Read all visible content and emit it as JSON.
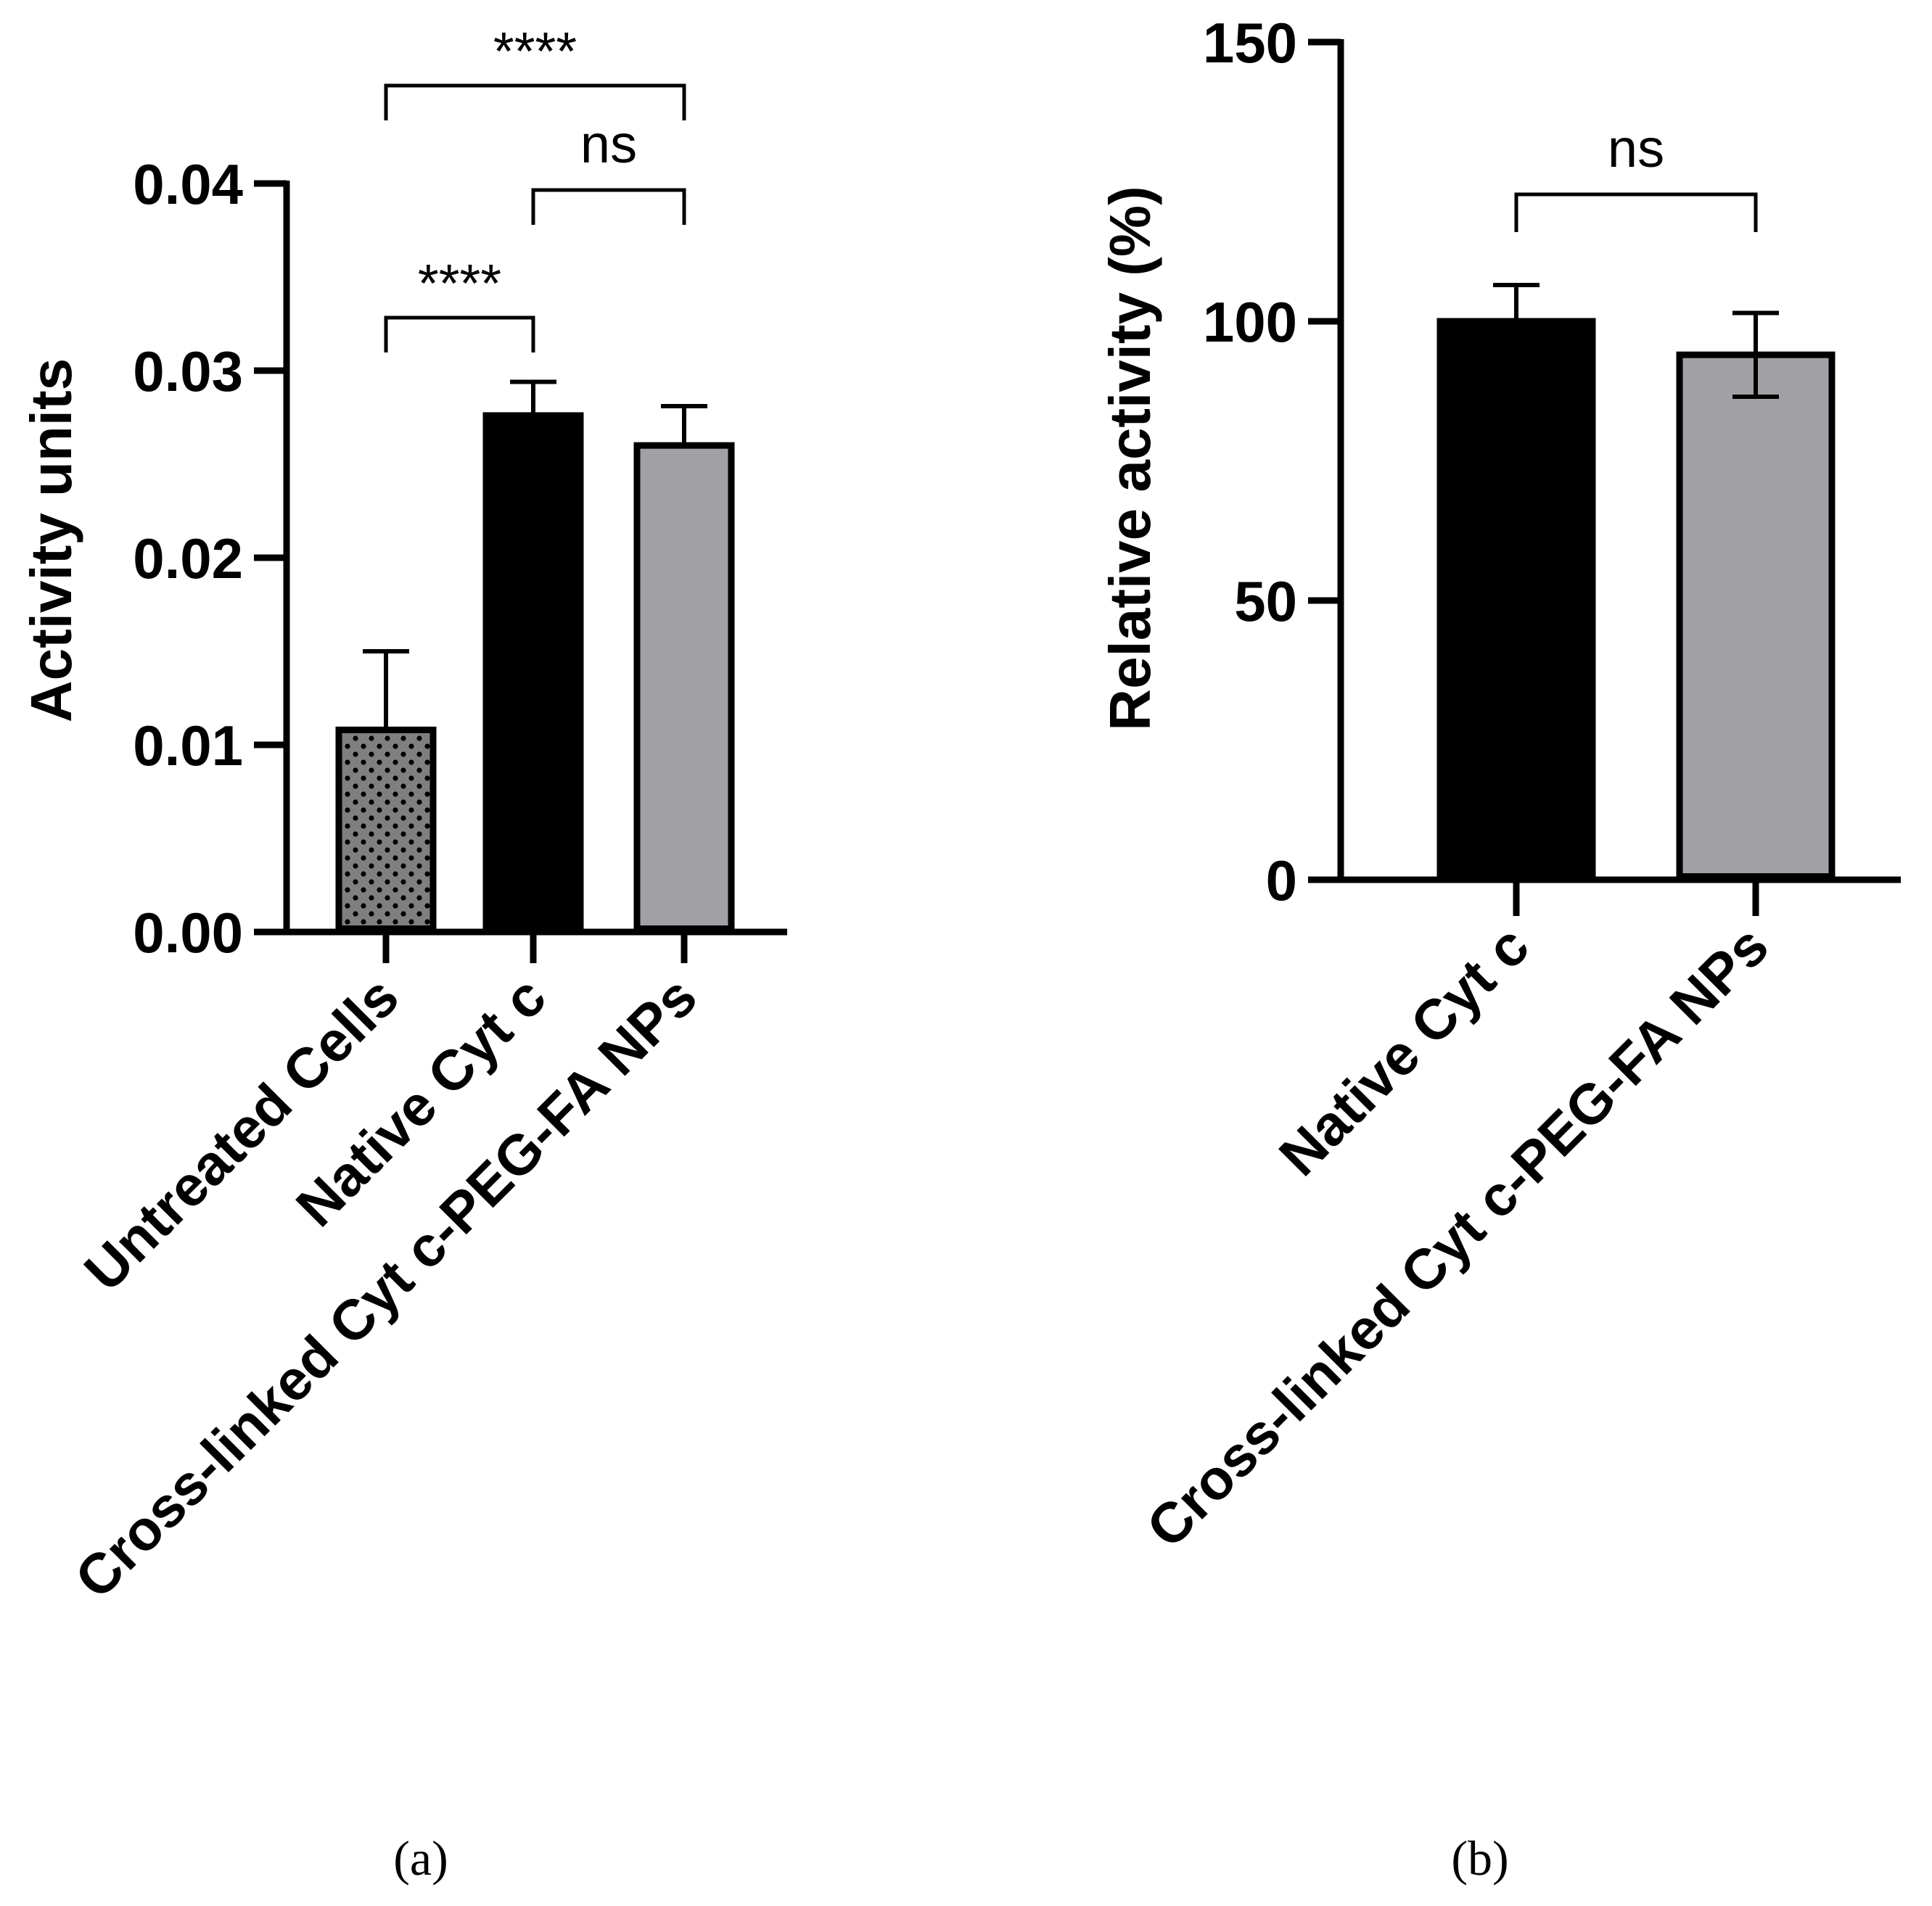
{
  "chart_data": [
    {
      "type": "bar",
      "panel_label": "(a)",
      "ylabel": "Activity units",
      "ylim": [
        0,
        0.04
      ],
      "yticks": [
        "0.00",
        "0.01",
        "0.02",
        "0.03",
        "0.04"
      ],
      "ytick_values": [
        0,
        0.01,
        0.02,
        0.03,
        0.04
      ],
      "categories": [
        "Untreated Cells",
        "Native Cyt c",
        "Cross-linked Cyt c-PEG-FA NPs"
      ],
      "values": [
        0.0108,
        0.0276,
        0.026
      ],
      "errors": [
        0.0042,
        0.0018,
        0.0021
      ],
      "fills": [
        "dotted-gray",
        "black",
        "gray"
      ],
      "significance": [
        {
          "from": 0,
          "to": 1,
          "label": "****"
        },
        {
          "from": 1,
          "to": 2,
          "label": "ns"
        },
        {
          "from": 0,
          "to": 2,
          "label": "****"
        }
      ]
    },
    {
      "type": "bar",
      "panel_label": "(b)",
      "ylabel": "Relative activity (%)",
      "ylim": [
        0,
        150
      ],
      "yticks": [
        "0",
        "50",
        "100",
        "150"
      ],
      "ytick_values": [
        0,
        50,
        100,
        150
      ],
      "categories": [
        "Native Cyt c",
        "Cross-linked Cyt c-PEG-FA NPs"
      ],
      "values": [
        100,
        94
      ],
      "errors": [
        6.5,
        7.5
      ],
      "fills": [
        "black",
        "gray"
      ],
      "significance": [
        {
          "from": 0,
          "to": 1,
          "label": "ns"
        }
      ]
    }
  ],
  "colors": {
    "black_bar": "#000000",
    "gray_bar": "#a2a2a6",
    "dotted_bar_bg": "#7f7f7f",
    "axis": "#000000"
  }
}
